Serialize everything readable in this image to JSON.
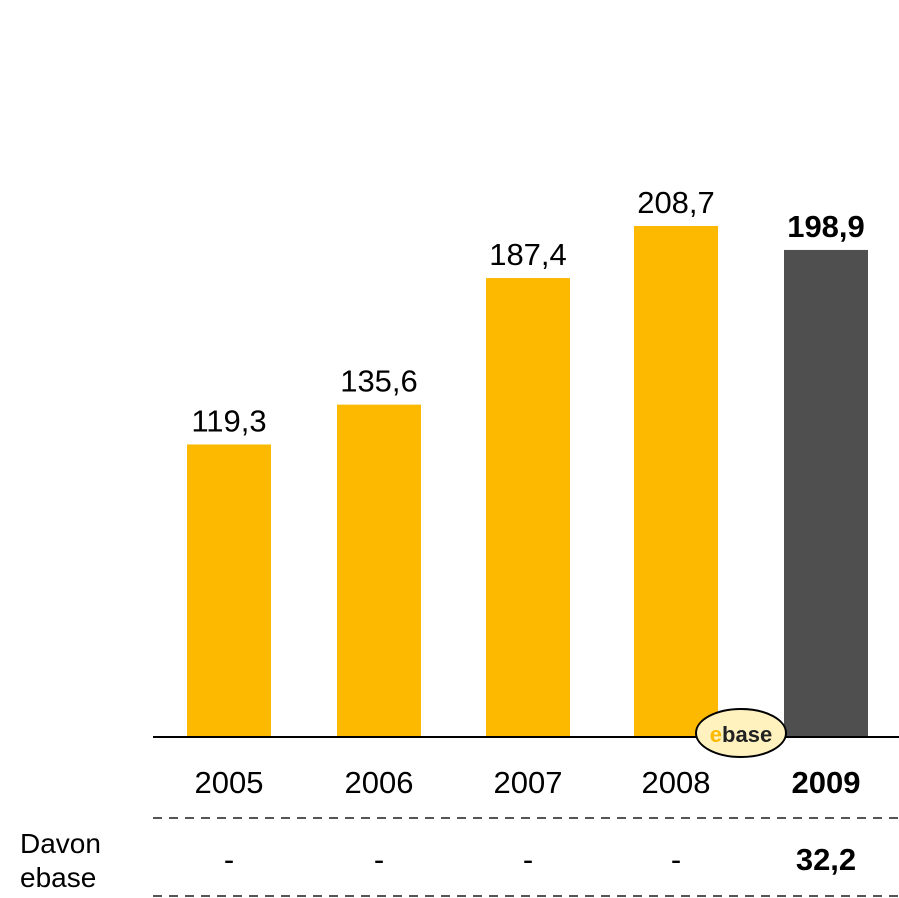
{
  "chart_data": {
    "type": "bar",
    "categories": [
      "2005",
      "2006",
      "2007",
      "2008",
      "2009"
    ],
    "values": [
      119.3,
      135.6,
      187.4,
      208.7,
      198.9
    ],
    "value_labels": [
      "119,3",
      "135,6",
      "187,4",
      "208,7",
      "198,9"
    ],
    "highlight_index": 4,
    "colors": {
      "bar": "#FDB900",
      "highlight": "#4F4F4F",
      "axis": "#000000"
    },
    "ylim": [
      0,
      208.7
    ],
    "grid": false,
    "sub_row": {
      "label_line1": "Davon",
      "label_line2": "ebase",
      "values": [
        "-",
        "-",
        "-",
        "-",
        "32,2"
      ]
    },
    "logo_text": {
      "prefix": "e",
      "rest": "base"
    }
  }
}
